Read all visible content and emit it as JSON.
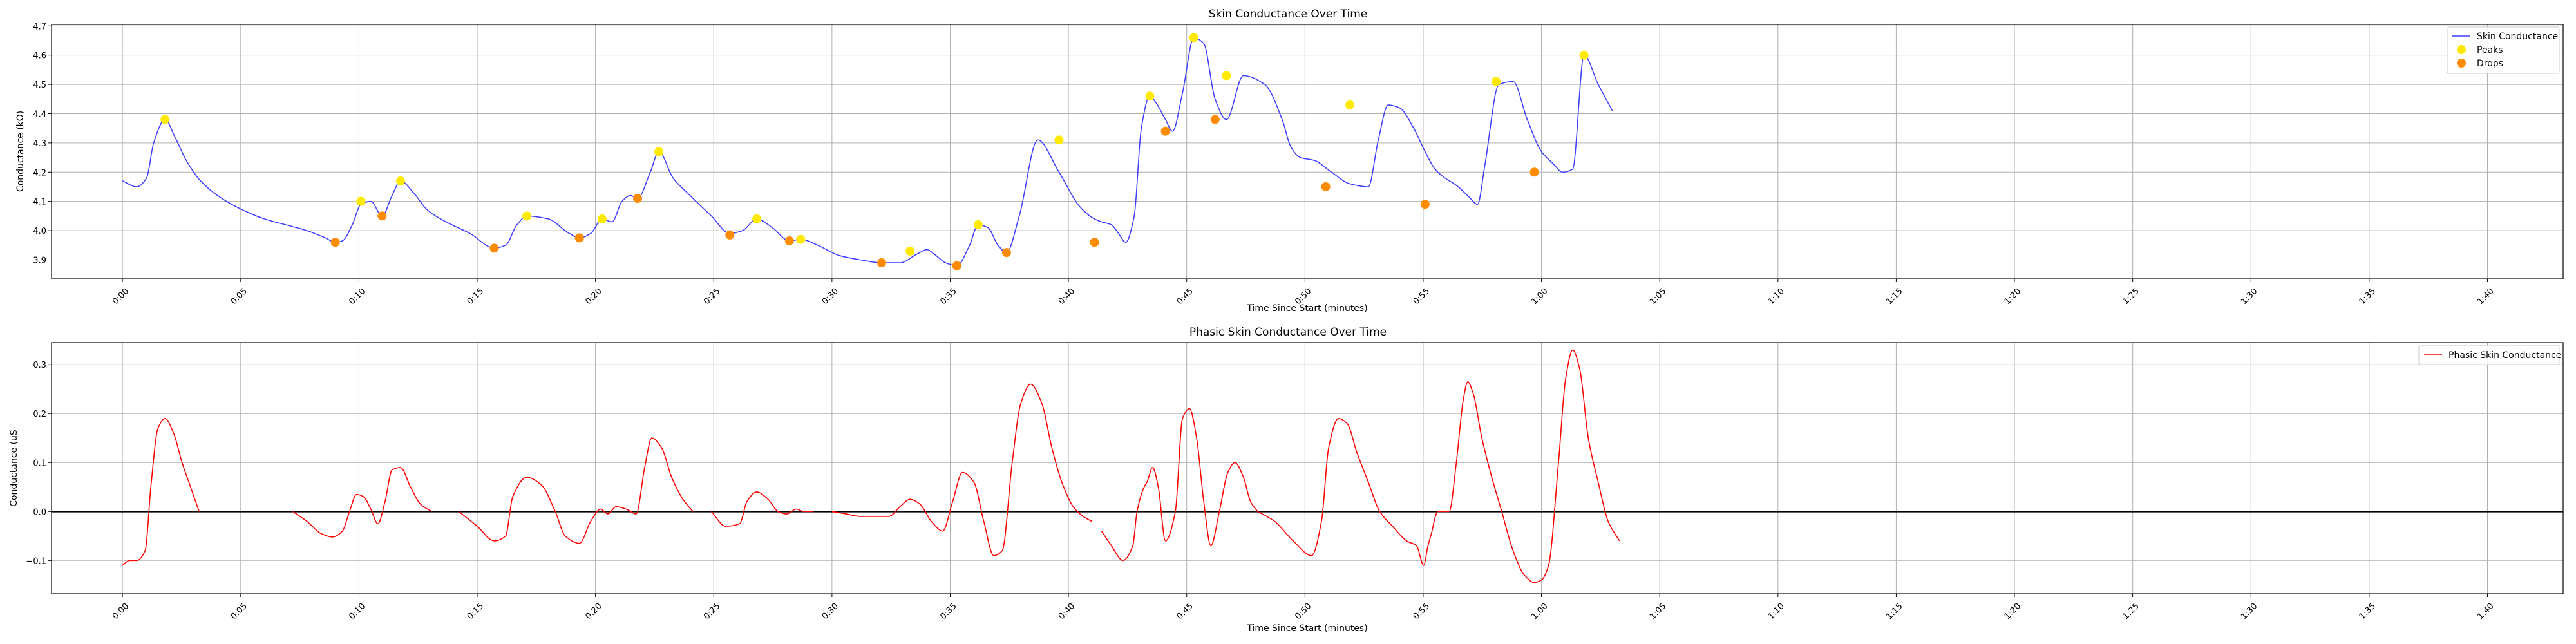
{
  "chart_data": [
    {
      "type": "line",
      "title": "Skin Conductance Over Time",
      "xlabel": "Time Since Start (minutes)",
      "ylabel": "Conductance (kΩ)",
      "xlim": [
        -0.05,
        1.72
      ],
      "ylim": [
        3.835,
        4.705
      ],
      "yticks": [
        "3.9",
        "4.0",
        "4.1",
        "4.2",
        "4.3",
        "4.4",
        "4.5",
        "4.6",
        "4.7"
      ],
      "ytick_values": [
        3.9,
        4.0,
        4.1,
        4.2,
        4.3,
        4.4,
        4.5,
        4.6,
        4.7
      ],
      "xticks": [
        "0:00",
        "0:05",
        "0:10",
        "0:15",
        "0:20",
        "0:25",
        "0:30",
        "0:35",
        "0:40",
        "0:45",
        "0:50",
        "0:55",
        "1:00",
        "1:05",
        "1:10",
        "1:15",
        "1:20",
        "1:25",
        "1:30",
        "1:35",
        "1:40"
      ],
      "grid": true,
      "legend_position": "top-right",
      "colors": {
        "line": "#3f3fff",
        "peaks": "#ffea00",
        "drops": "#ff8c00"
      },
      "legend": [
        "Skin Conductance",
        "Peaks",
        "Drops"
      ],
      "series": [
        {
          "name": "Skin Conductance",
          "x": [
            0,
            0.01,
            0.017,
            0.022,
            0.03,
            0.037,
            0.045,
            0.055,
            0.07,
            0.085,
            0.1,
            0.115,
            0.13,
            0.143,
            0.15,
            0.155,
            0.162,
            0.168,
            0.175,
            0.183,
            0.19,
            0.196,
            0.205,
            0.215,
            0.228,
            0.245,
            0.262,
            0.27,
            0.278,
            0.285,
            0.3,
            0.315,
            0.322,
            0.33,
            0.338,
            0.345,
            0.352,
            0.358,
            0.363,
            0.372,
            0.378,
            0.388,
            0.4,
            0.415,
            0.428,
            0.437,
            0.447,
            0.458,
            0.47,
            0.478,
            0.49,
            0.505,
            0.52,
            0.535,
            0.548,
            0.56,
            0.567,
            0.572,
            0.58,
            0.588,
            0.597,
            0.603,
            0.61,
            0.617,
            0.623,
            0.632,
            0.645,
            0.66,
            0.675,
            0.685,
            0.69,
            0.697,
            0.702,
            0.707,
            0.713,
            0.718,
            0.724,
            0.728,
            0.735,
            0.74,
            0.747,
            0.755,
            0.762,
            0.77,
            0.778,
            0.79,
            0.805,
            0.818,
            0.823,
            0.83,
            0.84,
            0.852,
            0.865,
            0.878,
            0.885,
            0.892,
            0.9,
            0.91,
            0.918,
            0.925,
            0.932,
            0.94,
            0.948,
            0.955,
            0.96,
            0.97,
            0.98,
            0.99,
            1.0,
            1.008,
            1.015,
            1.022,
            1.03,
            1.04,
            1.05
          ],
          "values": [
            4.17,
            4.15,
            4.18,
            4.3,
            4.38,
            4.32,
            4.24,
            4.17,
            4.11,
            4.07,
            4.04,
            4.02,
            4.0,
            3.975,
            3.96,
            3.965,
            4.02,
            4.09,
            4.1,
            4.05,
            4.12,
            4.17,
            4.13,
            4.07,
            4.03,
            3.99,
            3.94,
            3.95,
            4.02,
            4.05,
            4.04,
            3.99,
            3.975,
            3.99,
            4.04,
            4.03,
            4.1,
            4.12,
            4.11,
            4.2,
            4.27,
            4.18,
            4.12,
            4.05,
            3.99,
            4.0,
            4.04,
            4.01,
            3.965,
            3.97,
            3.95,
            3.915,
            3.9,
            3.89,
            3.89,
            3.92,
            3.935,
            3.92,
            3.89,
            3.88,
            3.95,
            4.02,
            4.01,
            3.95,
            3.925,
            4.05,
            4.31,
            4.2,
            4.08,
            4.04,
            4.03,
            4.02,
            3.99,
            3.96,
            4.05,
            4.35,
            4.46,
            4.44,
            4.38,
            4.34,
            4.47,
            4.66,
            4.64,
            4.45,
            4.38,
            4.53,
            4.5,
            4.37,
            4.29,
            4.25,
            4.24,
            4.2,
            4.16,
            4.15,
            4.31,
            4.43,
            4.42,
            4.35,
            4.27,
            4.21,
            4.18,
            4.155,
            4.12,
            4.09,
            4.22,
            4.5,
            4.51,
            4.38,
            4.27,
            4.23,
            4.2,
            4.21,
            4.6,
            4.5,
            4.41
          ]
        }
      ],
      "peaks": {
        "x": [
          0.03,
          0.168,
          0.196,
          0.285,
          0.338,
          0.378,
          0.447,
          0.478,
          0.555,
          0.603,
          0.66,
          0.724,
          0.755,
          0.778,
          0.865,
          0.968,
          1.03
        ],
        "values": [
          4.38,
          4.1,
          4.17,
          4.05,
          4.04,
          4.27,
          4.04,
          3.97,
          3.93,
          4.02,
          4.31,
          4.46,
          4.66,
          4.53,
          4.43,
          4.51,
          4.6
        ]
      },
      "drops": {
        "x": [
          0.15,
          0.183,
          0.262,
          0.322,
          0.363,
          0.428,
          0.47,
          0.535,
          0.588,
          0.623,
          0.685,
          0.735,
          0.77,
          0.848,
          0.918,
          0.995
        ],
        "values": [
          3.96,
          4.05,
          3.94,
          3.975,
          4.11,
          3.985,
          3.965,
          3.89,
          3.88,
          3.925,
          3.96,
          4.34,
          4.38,
          4.15,
          4.09,
          4.2
        ]
      }
    },
    {
      "type": "line",
      "title": "Phasic Skin Conductance Over Time",
      "xlabel": "Time Since Start (minutes)",
      "ylabel": "Conductance (uS",
      "xlim": [
        -0.05,
        1.72
      ],
      "ylim": [
        -0.168,
        0.345
      ],
      "yticks": [
        "−0.1",
        "0.0",
        "0.1",
        "0.2",
        "0.3"
      ],
      "ytick_values": [
        -0.1,
        0.0,
        0.1,
        0.2,
        0.3
      ],
      "xticks": [
        "0:00",
        "0:05",
        "0:10",
        "0:15",
        "0:20",
        "0:25",
        "0:30",
        "0:35",
        "0:40",
        "0:45",
        "0:50",
        "0:55",
        "1:00",
        "1:05",
        "1:10",
        "1:15",
        "1:20",
        "1:25",
        "1:30",
        "1:35",
        "1:40"
      ],
      "grid": true,
      "legend_position": "top-right",
      "colors": {
        "line": "#ff0000",
        "zero_line": "#000000"
      },
      "legend": [
        "Phasic Skin Conductance"
      ],
      "series": [
        {
          "name": "Phasic Skin Conductance",
          "x": [
            0,
            0.005,
            0.01,
            0.016,
            0.02,
            0.025,
            0.03,
            0.036,
            0.042,
            0.048,
            0.054
          ],
          "values": [
            -0.11,
            -0.1,
            -0.1,
            -0.08,
            0.05,
            0.17,
            0.19,
            0.16,
            0.1,
            0.05,
            0.0
          ]
        },
        {
          "name": "Phasic Skin Conductance",
          "x": [
            0.12,
            0.13,
            0.14,
            0.148,
            0.155,
            0.16,
            0.165,
            0.17,
            0.175,
            0.18,
            0.185,
            0.19,
            0.196,
            0.203,
            0.21,
            0.218
          ],
          "values": [
            0.0,
            -0.02,
            -0.045,
            -0.052,
            -0.04,
            0.0,
            0.035,
            0.03,
            0.005,
            -0.025,
            0.02,
            0.085,
            0.09,
            0.05,
            0.015,
            0.0
          ]
        },
        {
          "name": "Phasic Skin Conductance",
          "x": [
            0.237,
            0.25,
            0.262,
            0.27,
            0.275,
            0.285,
            0.295,
            0.305,
            0.312,
            0.322,
            0.33,
            0.337,
            0.342,
            0.348,
            0.355,
            0.362,
            0.368,
            0.373,
            0.38,
            0.387,
            0.395,
            0.402
          ],
          "values": [
            0.0,
            -0.03,
            -0.06,
            -0.05,
            0.03,
            0.07,
            0.055,
            0.0,
            -0.05,
            -0.065,
            -0.02,
            0.005,
            -0.005,
            0.01,
            0.005,
            -0.005,
            0.09,
            0.15,
            0.13,
            0.07,
            0.025,
            0.0
          ]
        },
        {
          "name": "Phasic Skin Conductance",
          "x": [
            0.415,
            0.425,
            0.435,
            0.44,
            0.447,
            0.455,
            0.462,
            0.468,
            0.475,
            0.48,
            0.487
          ],
          "values": [
            0.0,
            -0.03,
            -0.025,
            0.02,
            0.04,
            0.025,
            0.0,
            -0.005,
            0.005,
            0.0,
            0.0
          ]
        },
        {
          "name": "Phasic Skin Conductance",
          "x": [
            0.5,
            0.51,
            0.52,
            0.53,
            0.54,
            0.548,
            0.555,
            0.562,
            0.57,
            0.578,
            0.585,
            0.592,
            0.6,
            0.607,
            0.614,
            0.62,
            0.627,
            0.633,
            0.64,
            0.648,
            0.655,
            0.662,
            0.67,
            0.677,
            0.683
          ],
          "values": [
            0.0,
            -0.005,
            -0.01,
            -0.01,
            -0.01,
            0.01,
            0.025,
            0.015,
            -0.02,
            -0.04,
            0.02,
            0.08,
            0.06,
            -0.02,
            -0.09,
            -0.08,
            0.1,
            0.22,
            0.26,
            0.22,
            0.13,
            0.06,
            0.01,
            -0.01,
            -0.02
          ]
        },
        {
          "name": "Phasic Skin Conductance",
          "x": [
            0.69,
            0.697,
            0.705,
            0.712,
            0.715,
            0.72,
            0.722,
            0.726,
            0.73,
            0.735,
            0.742,
            0.747,
            0.752,
            0.757,
            0.762,
            0.767,
            0.773,
            0.779,
            0.784,
            0.79,
            0.795,
            0.8
          ],
          "values": [
            -0.04,
            -0.07,
            -0.1,
            -0.07,
            0.0,
            0.05,
            0.06,
            0.09,
            0.05,
            -0.06,
            0.0,
            0.19,
            0.21,
            0.15,
            0.02,
            -0.07,
            0.0,
            0.08,
            0.1,
            0.07,
            0.02,
            0.0
          ]
        },
        {
          "name": "Phasic Skin Conductance",
          "x": [
            0.8,
            0.812,
            0.825,
            0.838,
            0.845,
            0.85,
            0.857,
            0.863,
            0.87,
            0.878,
            0.886,
            0.895,
            0.905,
            0.912,
            0.917,
            0.92,
            0.922,
            0.927,
            0.935,
            0.94,
            0.945,
            0.948,
            0.952,
            0.958,
            0.965,
            0.972,
            0.98,
            0.988,
            0.995,
            1.0,
            1.005,
            1.012,
            1.017,
            1.022,
            1.027,
            1.033,
            1.04,
            1.047,
            1.055
          ],
          "values": [
            0.0,
            -0.02,
            -0.06,
            -0.09,
            -0.02,
            0.13,
            0.19,
            0.18,
            0.12,
            0.06,
            0.0,
            -0.03,
            -0.06,
            -0.07,
            -0.11,
            -0.07,
            -0.05,
            0.0,
            0.0,
            0.1,
            0.23,
            0.265,
            0.24,
            0.15,
            0.07,
            0.0,
            -0.08,
            -0.13,
            -0.145,
            -0.14,
            -0.11,
            0.1,
            0.27,
            0.33,
            0.29,
            0.15,
            0.06,
            -0.02,
            -0.06
          ]
        }
      ]
    }
  ]
}
